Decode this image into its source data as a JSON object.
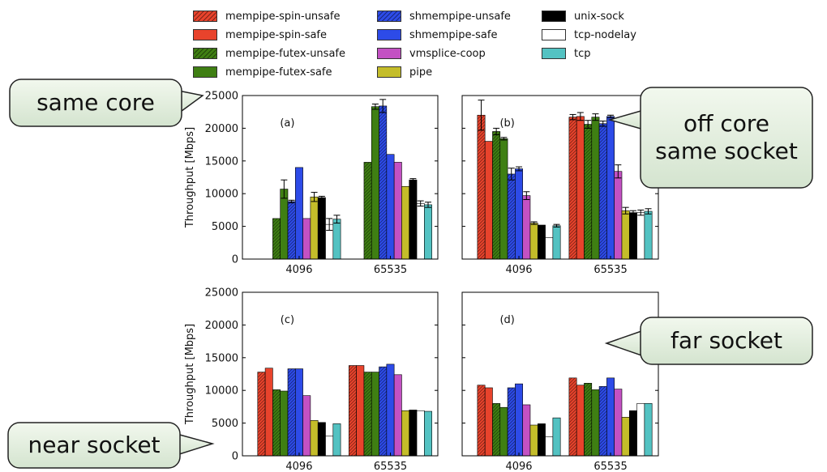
{
  "colors": {
    "mempipe-spin-unsafe": "#e8432c",
    "mempipe-spin-safe": "#e8432c",
    "mempipe-futex-unsafe": "#3f7f13",
    "mempipe-futex-safe": "#3f7f13",
    "shmempipe-unsafe": "#2d4be8",
    "shmempipe-safe": "#2d4be8",
    "vmsplice-coop": "#c351c3",
    "pipe": "#c4bd2a",
    "unix-sock": "#000000",
    "tcp-nodelay": "#ffffff",
    "tcp": "#53c2c2"
  },
  "legend": [
    {
      "name": "mempipe-spin-unsafe",
      "hatched": true
    },
    {
      "name": "mempipe-spin-safe",
      "hatched": false
    },
    {
      "name": "mempipe-futex-unsafe",
      "hatched": true
    },
    {
      "name": "mempipe-futex-safe",
      "hatched": false
    },
    {
      "name": "shmempipe-unsafe",
      "hatched": true
    },
    {
      "name": "shmempipe-safe",
      "hatched": false
    },
    {
      "name": "vmsplice-coop",
      "hatched": false
    },
    {
      "name": "pipe",
      "hatched": false
    },
    {
      "name": "unix-sock",
      "hatched": false
    },
    {
      "name": "tcp-nodelay",
      "hatched": false
    },
    {
      "name": "tcp",
      "hatched": false
    }
  ],
  "callouts": {
    "same_core": "same core",
    "off_core": [
      "off core",
      "same socket"
    ],
    "far_socket": "far socket",
    "near_socket": "near socket"
  },
  "chart_data": [
    {
      "type": "bar",
      "panel": "(a)",
      "ylabel": "Throughput [Mbps]",
      "ylim": [
        0,
        25000
      ],
      "yticks": [
        0,
        5000,
        10000,
        15000,
        20000,
        25000
      ],
      "categories": [
        "4096",
        "65535"
      ],
      "series": [
        {
          "name": "mempipe-spin-unsafe",
          "values": [
            0,
            0
          ]
        },
        {
          "name": "mempipe-spin-safe",
          "values": [
            0,
            0
          ]
        },
        {
          "name": "mempipe-futex-unsafe",
          "values": [
            6200,
            14800
          ]
        },
        {
          "name": "mempipe-futex-safe",
          "values": [
            10700,
            23300
          ],
          "errors": [
            1400,
            400
          ]
        },
        {
          "name": "shmempipe-unsafe",
          "values": [
            8800,
            23400
          ],
          "errors": [
            200,
            1000
          ]
        },
        {
          "name": "shmempipe-safe",
          "values": [
            14000,
            16000
          ]
        },
        {
          "name": "vmsplice-coop",
          "values": [
            6200,
            14800
          ]
        },
        {
          "name": "pipe",
          "values": [
            9500,
            11100
          ],
          "errors": [
            700,
            0
          ]
        },
        {
          "name": "unix-sock",
          "values": [
            9400,
            12100
          ],
          "errors": [
            200,
            200
          ]
        },
        {
          "name": "tcp-nodelay",
          "values": [
            5300,
            8500
          ],
          "errors": [
            900,
            400
          ]
        },
        {
          "name": "tcp",
          "values": [
            6100,
            8300
          ],
          "errors": [
            600,
            400
          ]
        }
      ]
    },
    {
      "type": "bar",
      "panel": "(b)",
      "ylabel": "",
      "ylim": [
        0,
        25000
      ],
      "yticks": [
        0,
        5000,
        10000,
        15000,
        20000,
        25000
      ],
      "categories": [
        "4096",
        "65535"
      ],
      "series": [
        {
          "name": "mempipe-spin-unsafe",
          "values": [
            22000,
            21700
          ],
          "errors": [
            2300,
            400
          ]
        },
        {
          "name": "mempipe-spin-safe",
          "values": [
            18000,
            21800
          ],
          "errors": [
            0,
            600
          ]
        },
        {
          "name": "mempipe-futex-unsafe",
          "values": [
            19500,
            20600
          ],
          "errors": [
            500,
            600
          ]
        },
        {
          "name": "mempipe-futex-safe",
          "values": [
            18400,
            21700
          ],
          "errors": [
            200,
            500
          ]
        },
        {
          "name": "shmempipe-unsafe",
          "values": [
            13000,
            20700
          ],
          "errors": [
            900,
            400
          ]
        },
        {
          "name": "shmempipe-safe",
          "values": [
            13800,
            21800
          ],
          "errors": [
            300,
            200
          ]
        },
        {
          "name": "vmsplice-coop",
          "values": [
            9700,
            13400
          ],
          "errors": [
            600,
            1000
          ]
        },
        {
          "name": "pipe",
          "values": [
            5500,
            7400
          ],
          "errors": [
            200,
            500
          ]
        },
        {
          "name": "unix-sock",
          "values": [
            5200,
            7100
          ],
          "errors": [
            0,
            300
          ]
        },
        {
          "name": "tcp-nodelay",
          "values": [
            3300,
            7100
          ],
          "errors": [
            0,
            400
          ]
        },
        {
          "name": "tcp",
          "values": [
            5100,
            7300
          ],
          "errors": [
            200,
            400
          ]
        }
      ]
    },
    {
      "type": "bar",
      "panel": "(c)",
      "ylabel": "Throughput [Mbps]",
      "ylim": [
        0,
        25000
      ],
      "yticks": [
        0,
        5000,
        10000,
        15000,
        20000,
        25000
      ],
      "categories": [
        "4096",
        "65535"
      ],
      "series": [
        {
          "name": "mempipe-spin-unsafe",
          "values": [
            12800,
            13800
          ]
        },
        {
          "name": "mempipe-spin-safe",
          "values": [
            13400,
            13800
          ]
        },
        {
          "name": "mempipe-futex-unsafe",
          "values": [
            10100,
            12800
          ]
        },
        {
          "name": "mempipe-futex-safe",
          "values": [
            9900,
            12800
          ]
        },
        {
          "name": "shmempipe-unsafe",
          "values": [
            13300,
            13600
          ]
        },
        {
          "name": "shmempipe-safe",
          "values": [
            13300,
            14000
          ]
        },
        {
          "name": "vmsplice-coop",
          "values": [
            9200,
            12400
          ]
        },
        {
          "name": "pipe",
          "values": [
            5400,
            6900
          ]
        },
        {
          "name": "unix-sock",
          "values": [
            5100,
            7000
          ]
        },
        {
          "name": "tcp-nodelay",
          "values": [
            3000,
            6900
          ]
        },
        {
          "name": "tcp",
          "values": [
            4900,
            6800
          ]
        }
      ]
    },
    {
      "type": "bar",
      "panel": "(d)",
      "ylabel": "",
      "ylim": [
        0,
        25000
      ],
      "yticks": [
        0,
        5000,
        10000,
        15000,
        20000,
        25000
      ],
      "categories": [
        "4096",
        "65535"
      ],
      "series": [
        {
          "name": "mempipe-spin-unsafe",
          "values": [
            10800,
            11900
          ]
        },
        {
          "name": "mempipe-spin-safe",
          "values": [
            10400,
            10800
          ]
        },
        {
          "name": "mempipe-futex-unsafe",
          "values": [
            8000,
            11100
          ]
        },
        {
          "name": "mempipe-futex-safe",
          "values": [
            7400,
            10100
          ]
        },
        {
          "name": "shmempipe-unsafe",
          "values": [
            10400,
            10600
          ]
        },
        {
          "name": "shmempipe-safe",
          "values": [
            11000,
            11900
          ]
        },
        {
          "name": "vmsplice-coop",
          "values": [
            7800,
            10200
          ]
        },
        {
          "name": "pipe",
          "values": [
            4700,
            5900
          ]
        },
        {
          "name": "unix-sock",
          "values": [
            4900,
            6900
          ]
        },
        {
          "name": "tcp-nodelay",
          "values": [
            2900,
            8000
          ]
        },
        {
          "name": "tcp",
          "values": [
            5800,
            8000
          ]
        }
      ]
    }
  ]
}
